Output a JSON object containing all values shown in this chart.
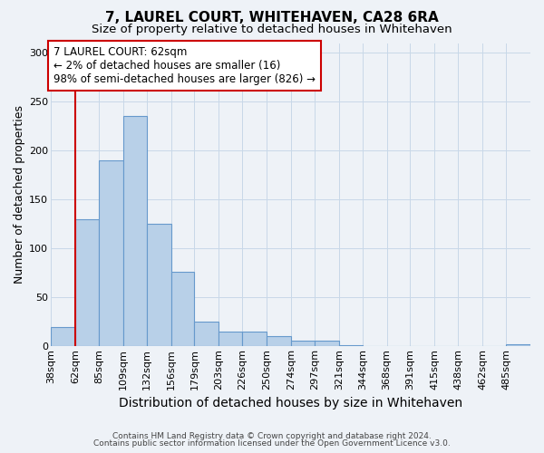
{
  "title": "7, LAUREL COURT, WHITEHAVEN, CA28 6RA",
  "subtitle": "Size of property relative to detached houses in Whitehaven",
  "xlabel": "Distribution of detached houses by size in Whitehaven",
  "ylabel": "Number of detached properties",
  "bar_edges": [
    38,
    62,
    85,
    109,
    132,
    156,
    179,
    203,
    226,
    250,
    274,
    297,
    321,
    344,
    368,
    391,
    415,
    438,
    462,
    485,
    509
  ],
  "bar_heights": [
    20,
    130,
    190,
    235,
    125,
    76,
    25,
    15,
    15,
    10,
    6,
    6,
    1,
    0,
    0,
    0,
    0,
    0,
    0,
    2
  ],
  "bar_color": "#b8d0e8",
  "bar_edge_color": "#6699cc",
  "property_line_x": 62,
  "annotation_line1": "7 LAUREL COURT: 62sqm",
  "annotation_line2": "← 2% of detached houses are smaller (16)",
  "annotation_line3": "98% of semi-detached houses are larger (826) →",
  "annotation_box_color": "#ffffff",
  "annotation_box_edge_color": "#cc0000",
  "property_line_color": "#cc0000",
  "ylim": [
    0,
    310
  ],
  "yticks": [
    0,
    50,
    100,
    150,
    200,
    250,
    300
  ],
  "grid_color": "#c8d8e8",
  "bg_color": "#eef2f7",
  "footer_line1": "Contains HM Land Registry data © Crown copyright and database right 2024.",
  "footer_line2": "Contains public sector information licensed under the Open Government Licence v3.0.",
  "title_fontsize": 11,
  "subtitle_fontsize": 9.5,
  "xlabel_fontsize": 10,
  "ylabel_fontsize": 9,
  "tick_fontsize": 8,
  "annotation_fontsize": 8.5,
  "footer_fontsize": 6.5
}
